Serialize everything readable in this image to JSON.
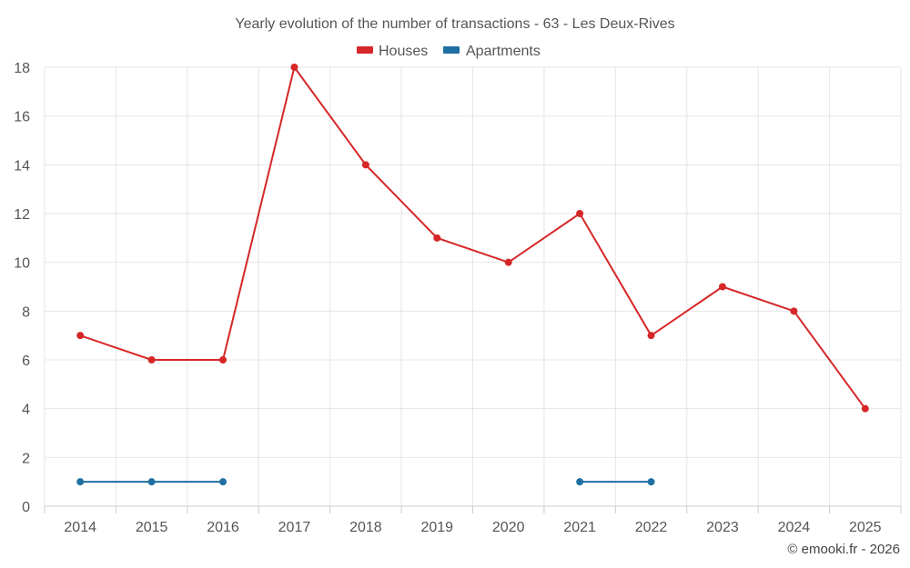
{
  "chart_data": {
    "type": "line",
    "title": "Yearly evolution of the number of transactions - 63 - Les Deux-Rives",
    "x": [
      "2014",
      "2015",
      "2016",
      "2017",
      "2018",
      "2019",
      "2020",
      "2021",
      "2022",
      "2023",
      "2024",
      "2025"
    ],
    "ylim": [
      0,
      18
    ],
    "yticks": [
      0,
      2,
      4,
      6,
      8,
      10,
      12,
      14,
      16,
      18
    ],
    "grid": true,
    "legend_position": "top-center",
    "series": [
      {
        "name": "Houses",
        "color": "#d62728",
        "values": [
          7,
          6,
          6,
          18,
          14,
          11,
          10,
          12,
          7,
          9,
          8,
          4
        ]
      },
      {
        "name": "Apartments",
        "color": "#1f6fa3",
        "values": [
          1,
          1,
          1,
          null,
          null,
          null,
          null,
          1,
          1,
          null,
          null,
          null
        ]
      }
    ]
  },
  "credit": "© emooki.fr - 2026"
}
